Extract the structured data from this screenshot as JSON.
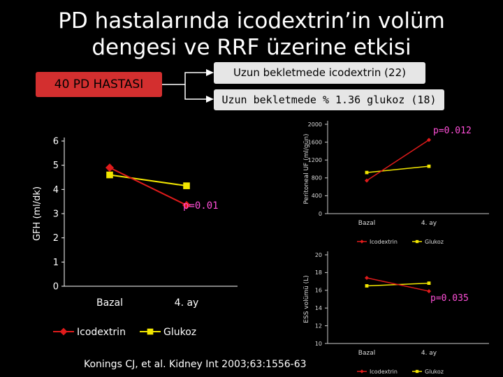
{
  "slide": {
    "title_line1": "PD hastalarında icodextrin’in volüm",
    "title_line2": "dengesi ve RRF üzerine etkisi",
    "group_box": "40 PD HASTASI",
    "arm_a": "Uzun bekletmede icodextrin (22)",
    "arm_b": "Uzun bekletmede % 1.36 glukoz (18)",
    "reference": "Konings CJ, et al. Kidney Int 2003;63:1556-63",
    "colors": {
      "background": "#000000",
      "group_box": "#d32f2f",
      "arm_box": "#e6e6e6",
      "icodextrin": "#e01b1b",
      "glukoz": "#f2e600",
      "pvalue": "#ff4fd8",
      "connector": "#ffffff"
    }
  },
  "chart_data": [
    {
      "type": "line",
      "ylabel": "GFH (ml/dk)",
      "xlabel": "",
      "categories": [
        "Bazal",
        "4. ay"
      ],
      "yticks": [
        "0",
        "1",
        "2",
        "3",
        "4",
        "5",
        "6"
      ],
      "ylim": [
        0,
        6
      ],
      "series": [
        {
          "name": "Icodextrin",
          "values": [
            4.9,
            3.35
          ]
        },
        {
          "name": "Glukoz",
          "values": [
            4.6,
            4.15
          ]
        }
      ],
      "annotation": "p=0.01",
      "legend": "bottom"
    },
    {
      "type": "line",
      "ylabel": "Peritoneal UF (ml/gün)",
      "xlabel": "",
      "categories": [
        "Bazal",
        "4. ay"
      ],
      "yticks": [
        "0",
        "400",
        "800",
        "1200",
        "1600",
        "2000"
      ],
      "ylim": [
        0,
        2000
      ],
      "series": [
        {
          "name": "Icodextrin",
          "values": [
            740,
            1650
          ]
        },
        {
          "name": "Glukoz",
          "values": [
            920,
            1060
          ]
        }
      ],
      "annotation": "p=0.012",
      "legend": "bottom"
    },
    {
      "type": "line",
      "ylabel": "ESS volümü (L)",
      "xlabel": "",
      "categories": [
        "Bazal",
        "4. ay"
      ],
      "yticks": [
        "10",
        "12",
        "14",
        "16",
        "18",
        "20"
      ],
      "ylim": [
        10,
        20
      ],
      "series": [
        {
          "name": "Icodextrin",
          "values": [
            17.4,
            15.9
          ]
        },
        {
          "name": "Glukoz",
          "values": [
            16.5,
            16.8
          ]
        }
      ],
      "annotation": "p=0.035",
      "legend": "bottom"
    }
  ]
}
